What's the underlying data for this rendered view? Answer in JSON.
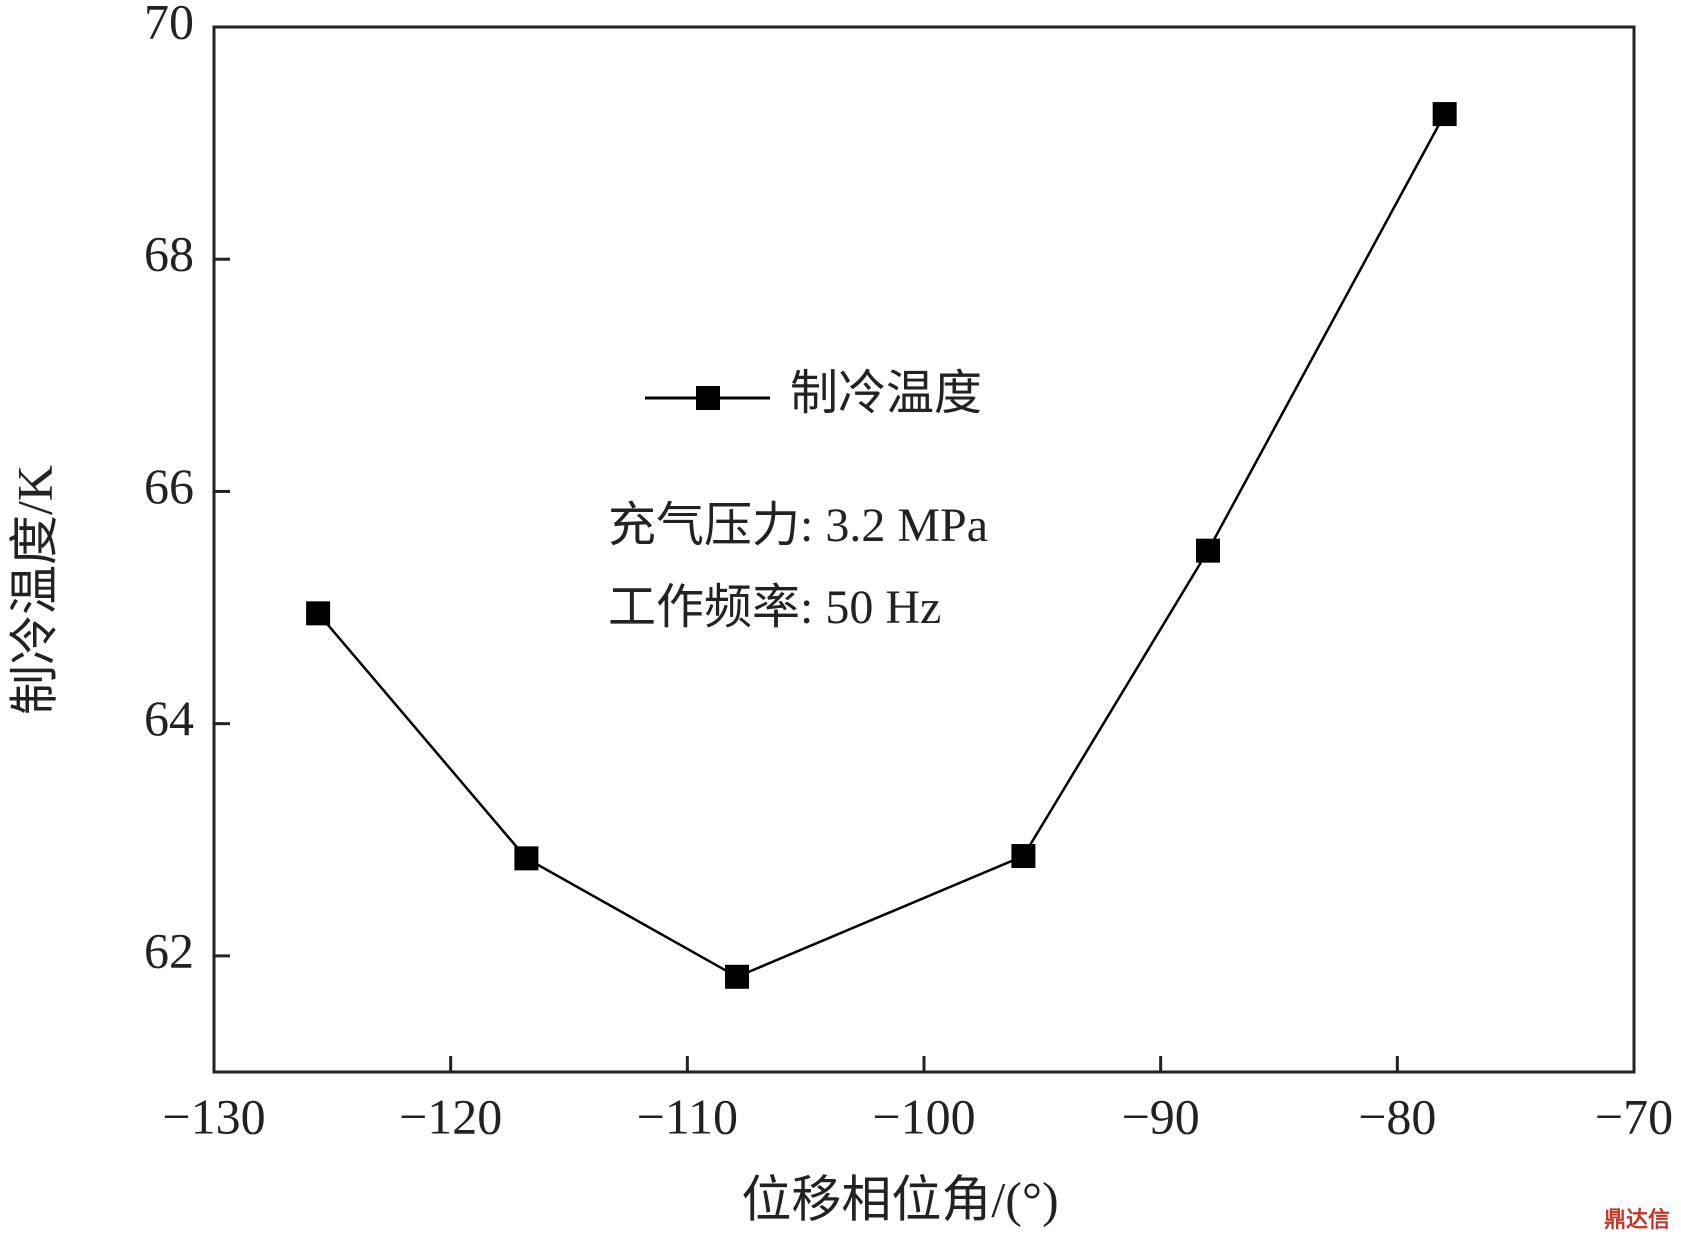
{
  "chart_data": {
    "type": "line",
    "x_label": "位移相位角/(°)",
    "y_label": "制冷温度/K",
    "annotations": [
      "充气压力: 3.2 MPa",
      "工作频率: 50 Hz"
    ],
    "watermark": "鼎达信",
    "x": [
      -125.6,
      -116.8,
      -107.9,
      -95.8,
      -88.0,
      -78.0
    ],
    "series": [
      {
        "name": "制冷温度",
        "color": "#000000",
        "values": [
          64.95,
          62.84,
          61.82,
          62.86,
          65.49,
          69.25
        ]
      }
    ],
    "xlim": [
      -130,
      -70
    ],
    "xticks": [
      {
        "value": -130,
        "label": "−130"
      },
      {
        "value": -120,
        "label": "−120"
      },
      {
        "value": -110,
        "label": "−110"
      },
      {
        "value": -100,
        "label": "−100"
      },
      {
        "value": -90,
        "label": "−90"
      },
      {
        "value": -80,
        "label": "−80"
      },
      {
        "value": -70,
        "label": "−70"
      }
    ],
    "ylim": [
      61,
      70
    ],
    "yticks": [
      62,
      64,
      66,
      68,
      70
    ],
    "grid": false,
    "legend": "center"
  }
}
